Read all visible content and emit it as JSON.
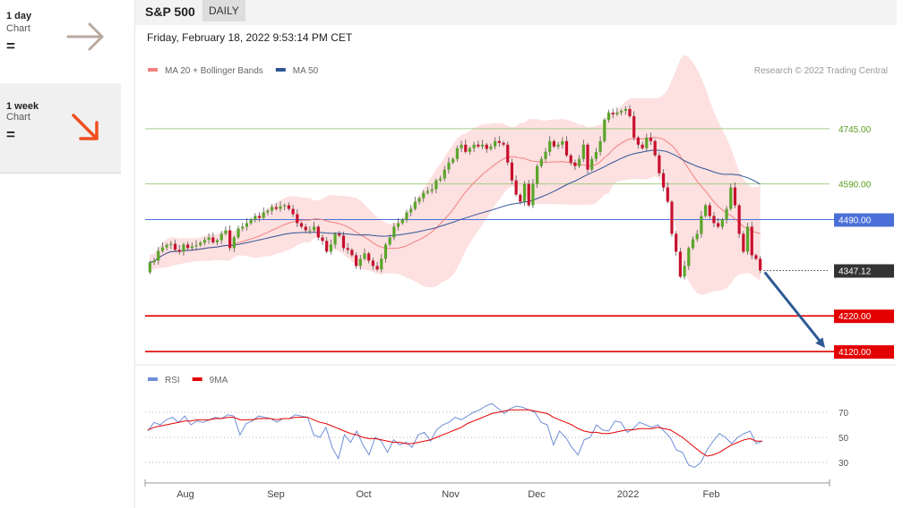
{
  "sidebar": {
    "cards": [
      {
        "period": "1 day",
        "sub": "Chart",
        "sign": "=",
        "arrow_icon": "arrow-right-icon",
        "color": "#b8aaa0"
      },
      {
        "period": "1 week",
        "sub": "Chart",
        "sign": "=",
        "arrow_icon": "arrow-down-right-icon",
        "color": "#ef4f1f"
      }
    ]
  },
  "header": {
    "title": "S&P 500",
    "badge": "DAILY",
    "date": "Friday, February 18, 2022 9:53:14 PM CET"
  },
  "colors": {
    "up_candle": "#5aa52a",
    "down_candle": "#c8102e",
    "bands_fill": "#fde0e0",
    "ma20": "#f28080",
    "ma50": "#2f5597",
    "green_level": "#a6cc86",
    "blue_level": "#4a6fd8",
    "red_level": "#e30000",
    "last_price": "#333333",
    "forecast_arrow": "#2e5a94",
    "rsi": "#6f8fd8",
    "rsi_ma": "#e30000"
  },
  "chart_data": [
    {
      "type": "candlestick",
      "title": "",
      "legend": [
        {
          "label": "MA 20 + Bollinger Bands",
          "color": "#f28080"
        },
        {
          "label": "MA 50",
          "color": "#2f5597"
        }
      ],
      "copyright": "Research © 2022 Trading Central",
      "ylim": [
        4090,
        4880
      ],
      "x_tick_labels": [
        "Aug",
        "Sep",
        "Oct",
        "Nov",
        "Dec",
        "2022",
        "Feb"
      ],
      "levels": [
        {
          "value": 4745.0,
          "label": "4745.00",
          "kind": "resistance"
        },
        {
          "value": 4590.0,
          "label": "4590.00",
          "kind": "resistance"
        },
        {
          "value": 4490.0,
          "label": "4490.00",
          "kind": "pivot"
        },
        {
          "value": 4347.12,
          "label": "4347.12",
          "kind": "last"
        },
        {
          "value": 4220.0,
          "label": "4220.00",
          "kind": "support"
        },
        {
          "value": 4120.0,
          "label": "4120.00",
          "kind": "support"
        }
      ],
      "forecast_target": 4120.0,
      "close": [
        4370,
        4375,
        4402,
        4412,
        4419,
        4422,
        4405,
        4400,
        4420,
        4410,
        4415,
        4418,
        4425,
        4433,
        4440,
        4426,
        4432,
        4450,
        4460,
        4410,
        4440,
        4465,
        4470,
        4480,
        4490,
        4500,
        4495,
        4510,
        4515,
        4525,
        4520,
        4527,
        4530,
        4520,
        4505,
        4480,
        4470,
        4460,
        4460,
        4470,
        4440,
        4430,
        4400,
        4420,
        4450,
        4445,
        4410,
        4405,
        4390,
        4360,
        4380,
        4395,
        4375,
        4360,
        4350,
        4380,
        4420,
        4440,
        4470,
        4480,
        4490,
        4510,
        4520,
        4540,
        4550,
        4565,
        4570,
        4575,
        4600,
        4605,
        4630,
        4650,
        4660,
        4690,
        4700,
        4680,
        4690,
        4700,
        4695,
        4700,
        4688,
        4695,
        4710,
        4705,
        4700,
        4650,
        4600,
        4560,
        4540,
        4590,
        4530,
        4590,
        4640,
        4660,
        4680,
        4710,
        4695,
        4700,
        4710,
        4670,
        4650,
        4640,
        4660,
        4700,
        4630,
        4660,
        4680,
        4710,
        4770,
        4790,
        4785,
        4790,
        4795,
        4800,
        4780,
        4720,
        4700,
        4690,
        4720,
        4710,
        4670,
        4620,
        4580,
        4540,
        4450,
        4400,
        4330,
        4360,
        4410,
        4435,
        4450,
        4500,
        4530,
        4500,
        4480,
        4470,
        4490,
        4520,
        4580,
        4530,
        4450,
        4400,
        4470,
        4390,
        4380,
        4347.12
      ]
    },
    {
      "type": "line",
      "title": "",
      "legend": [
        {
          "label": "RSI",
          "color": "#6f8fd8"
        },
        {
          "label": "9MA",
          "color": "#e30000"
        }
      ],
      "ylim": [
        20,
        85
      ],
      "y_ticks": [
        30,
        50,
        70
      ],
      "y_tick_labels": [
        "30",
        "50",
        "70"
      ],
      "x_tick_labels": [
        "Aug",
        "Sep",
        "Oct",
        "Nov",
        "Dec",
        "2022",
        "Feb"
      ],
      "series": [
        {
          "name": "RSI",
          "values": [
            55,
            62,
            60,
            64,
            66,
            62,
            67,
            60,
            63,
            62,
            64,
            66,
            65,
            68,
            67,
            52,
            61,
            63,
            67,
            66,
            65,
            62,
            65,
            65,
            68,
            67,
            66,
            52,
            50,
            58,
            42,
            33,
            52,
            46,
            55,
            44,
            36,
            50,
            47,
            38,
            48,
            44,
            46,
            42,
            52,
            54,
            47,
            56,
            60,
            62,
            66,
            64,
            67,
            70,
            72,
            75,
            77,
            73,
            69,
            73,
            75,
            74,
            72,
            70,
            62,
            60,
            44,
            55,
            50,
            42,
            36,
            48,
            50,
            60,
            56,
            55,
            63,
            62,
            54,
            57,
            62,
            60,
            58,
            60,
            55,
            50,
            40,
            38,
            28,
            26,
            30,
            40,
            47,
            53,
            50,
            45,
            50,
            53,
            55,
            45,
            47
          ],
          "ma": [
            56,
            58,
            59,
            60,
            61,
            62,
            63,
            63,
            64,
            64,
            64,
            65,
            65,
            66,
            66,
            64,
            64,
            64,
            65,
            65,
            65,
            64,
            65,
            65,
            66,
            66,
            66,
            64,
            62,
            61,
            59,
            57,
            55,
            53,
            52,
            50,
            49,
            49,
            48,
            47,
            46,
            46,
            45,
            45,
            46,
            47,
            48,
            50,
            52,
            54,
            56,
            58,
            61,
            63,
            65,
            67,
            69,
            70,
            71,
            72,
            72,
            72,
            72,
            71,
            70,
            69,
            66,
            64,
            62,
            60,
            57,
            55,
            54,
            54,
            53,
            53,
            54,
            55,
            56,
            56,
            57,
            57,
            57,
            58,
            57,
            56,
            53,
            50,
            46,
            42,
            38,
            35,
            36,
            38,
            41,
            44,
            46,
            48,
            49,
            47,
            47
          ]
        }
      ]
    }
  ]
}
